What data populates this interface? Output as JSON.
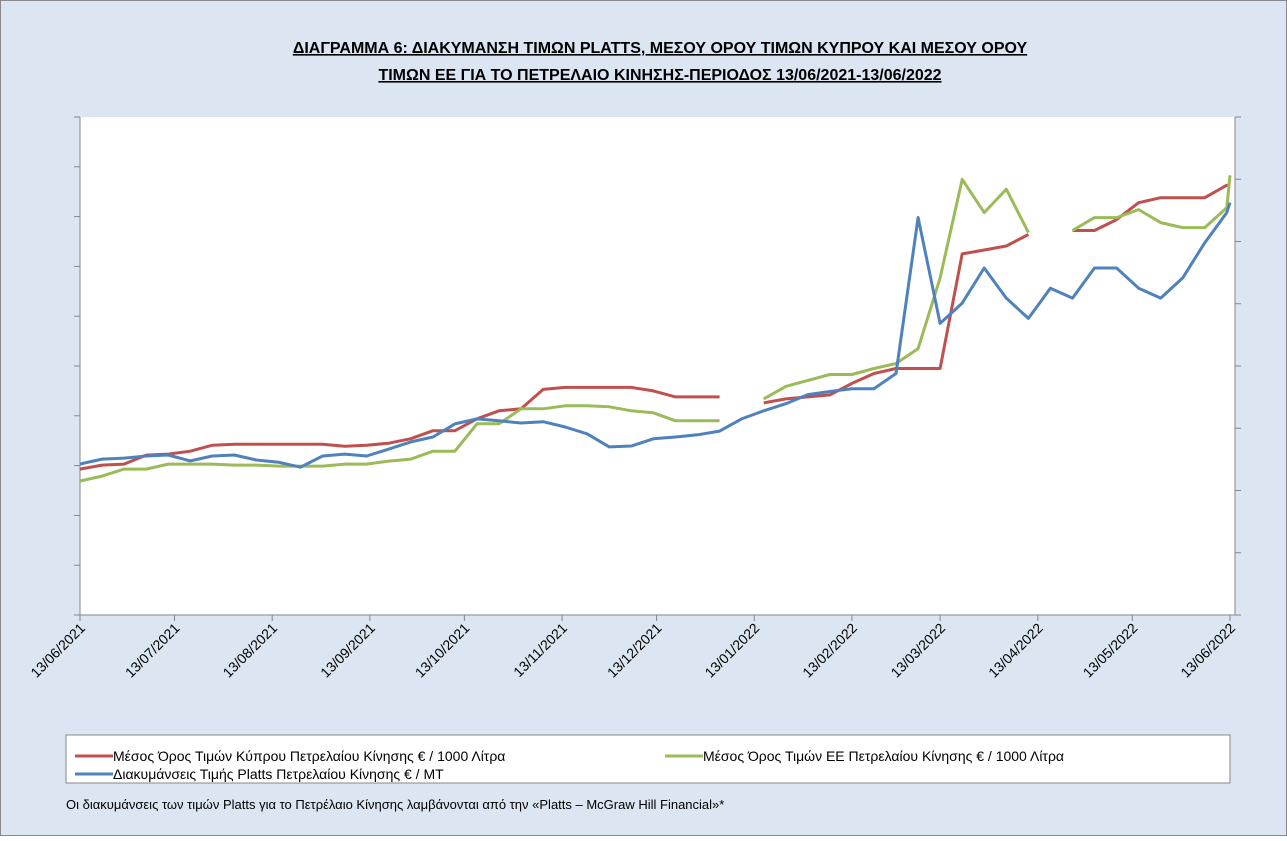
{
  "chart_data": {
    "type": "line",
    "title": [
      "ΔΙΑΓΡΑΜΜΑ 6: ΔΙΑΚΥΜΑΝΣΗ ΤΙΜΩΝ PLATTS, ΜΕΣΟΥ ΟΡΟΥ ΤΙΜΩΝ ΚΥΠΡΟΥ ΚΑΙ ΜΕΣΟΥ ΟΡΟΥ",
      "ΤΙΜΩΝ ΕΕ ΓΙΑ ΤΟ ΠΕΤΡΕΛΑΙΟ ΚΙΝΗΣΗΣ-ΠΕΡΙΟΔΟΣ 13/06/2021-13/06/2022"
    ],
    "footnote": "Οι διακυμάνσεις των τιμών Platts για το Πετρέλαιο Κίνησης λαμβάνονται από την «Platts – McGraw Hill Financial»*",
    "x": [
      "13/06/2021",
      "20/06/2021",
      "27/06/2021",
      "04/07/2021",
      "11/07/2021",
      "18/07/2021",
      "25/07/2021",
      "01/08/2021",
      "08/08/2021",
      "15/08/2021",
      "22/08/2021",
      "29/08/2021",
      "05/09/2021",
      "12/09/2021",
      "19/09/2021",
      "26/09/2021",
      "03/10/2021",
      "10/10/2021",
      "17/10/2021",
      "24/10/2021",
      "31/10/2021",
      "07/11/2021",
      "14/11/2021",
      "21/11/2021",
      "28/11/2021",
      "05/12/2021",
      "12/12/2021",
      "19/12/2021",
      "26/12/2021",
      "02/01/2022",
      "09/01/2022",
      "16/01/2022",
      "23/01/2022",
      "30/01/2022",
      "06/02/2022",
      "13/02/2022",
      "20/02/2022",
      "27/02/2022",
      "06/03/2022",
      "13/03/2022",
      "20/03/2022",
      "27/03/2022",
      "03/04/2022",
      "10/04/2022",
      "17/04/2022",
      "24/04/2022",
      "01/05/2022",
      "08/05/2022",
      "15/05/2022",
      "22/05/2022",
      "29/05/2022",
      "05/06/2022",
      "12/06/2022",
      "13/06/2022"
    ],
    "xticks": [
      "13/06/2021",
      "13/07/2021",
      "13/08/2021",
      "13/09/2021",
      "13/10/2021",
      "13/11/2021",
      "13/12/2021",
      "13/01/2022",
      "13/02/2022",
      "13/03/2022",
      "13/04/2022",
      "13/05/2022",
      "13/06/2022"
    ],
    "ylim": [
      1000,
      2000
    ],
    "yticks": [
      1000,
      1100,
      1200,
      1300,
      1400,
      1500,
      1600,
      1700,
      1800,
      1900,
      2000
    ],
    "y2lim": [
      0,
      1600
    ],
    "y2ticks": [
      0,
      200,
      400,
      600,
      800,
      1000,
      1200,
      1400,
      1600
    ],
    "series": [
      {
        "name": "Μέσος Όρος Τιμών Κύπρου Πετρελαίου Κίνησης  € / 1000 Λίτρα",
        "color": "#c0504d",
        "values": [
          1293,
          1301,
          1303,
          1321,
          1323,
          1329,
          1341,
          1343,
          1343,
          1343,
          1343,
          1343,
          1339,
          1341,
          1345,
          1354,
          1370,
          1370,
          1394,
          1410,
          1414,
          1453,
          1457,
          1457,
          1457,
          1457,
          1450,
          1438,
          1438,
          1438,
          null,
          1426,
          1434,
          1438,
          1442,
          1465,
          1485,
          1495,
          1495,
          1495,
          1725,
          1733,
          1741,
          1764,
          null,
          1772,
          1772,
          1794,
          1828,
          1838,
          1838,
          1838,
          1863,
          1863
        ]
      },
      {
        "name": "Μέσος Όρος Τιμών ΕΕ Πετρελαίου Κίνησης  € / 1000 Λίτρα",
        "color": "#9bbb59",
        "values": [
          1269,
          1279,
          1293,
          1293,
          1303,
          1303,
          1303,
          1301,
          1301,
          1299,
          1299,
          1299,
          1303,
          1303,
          1309,
          1313,
          1329,
          1329,
          1384,
          1384,
          1414,
          1414,
          1420,
          1420,
          1418,
          1410,
          1406,
          1390,
          1390,
          1390,
          null,
          1434,
          1459,
          1471,
          1483,
          1483,
          1495,
          1505,
          1535,
          1677,
          1875,
          1808,
          1855,
          1768,
          null,
          1772,
          1798,
          1798,
          1814,
          1788,
          1778,
          1778,
          1818,
          1883
        ]
      },
      {
        "name": "Διακυμάνσεις Τιμής Platts Πετρελαίου Κίνησης € / MT",
        "color": "#4f81bd",
        "axis": "y2",
        "values": [
          485,
          501,
          504,
          511,
          514,
          495,
          511,
          514,
          498,
          491,
          475,
          511,
          517,
          511,
          533,
          556,
          572,
          614,
          630,
          624,
          617,
          621,
          604,
          582,
          540,
          543,
          566,
          572,
          579,
          591,
          630,
          656,
          679,
          708,
          718,
          727,
          727,
          776,
          1277,
          937,
          1002,
          1115,
          1018,
          953,
          1050,
          1018,
          1115,
          1115,
          1050,
          1018,
          1083,
          1196,
          1293,
          1325
        ]
      }
    ]
  }
}
